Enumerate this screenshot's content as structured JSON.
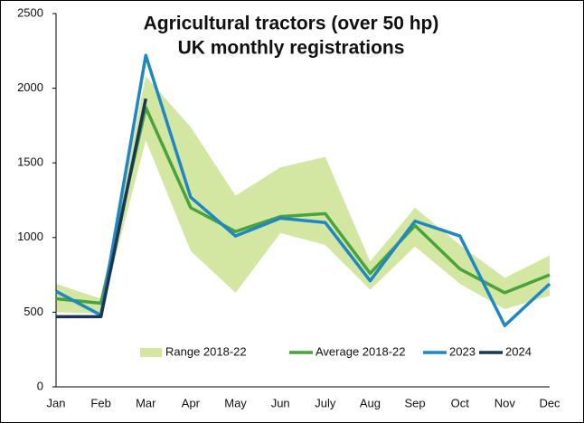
{
  "chart_data": {
    "type": "line",
    "title": [
      "Agricultural tractors (over 50 hp)",
      "UK monthly registrations"
    ],
    "categories": [
      "Jan",
      "Feb",
      "Mar",
      "Apr",
      "May",
      "Jun",
      "July",
      "Aug",
      "Sep",
      "Oct",
      "Nov",
      "Dec"
    ],
    "range": {
      "name": "Range 2018-22",
      "color": "#d3e7a3",
      "low": [
        500,
        490,
        1650,
        910,
        630,
        1030,
        950,
        650,
        940,
        690,
        520,
        610
      ],
      "high": [
        690,
        590,
        2080,
        1740,
        1280,
        1470,
        1540,
        840,
        1200,
        950,
        730,
        880
      ]
    },
    "series": [
      {
        "name": "Average 2018-22",
        "color": "#4aa33a",
        "values": [
          590,
          560,
          1870,
          1200,
          1040,
          1140,
          1160,
          760,
          1080,
          790,
          630,
          750
        ]
      },
      {
        "name": "2023",
        "color": "#1f87c4",
        "values": [
          640,
          480,
          2220,
          1270,
          1010,
          1130,
          1100,
          710,
          1110,
          1010,
          410,
          690
        ]
      },
      {
        "name": "2024",
        "color": "#1c3553",
        "values": [
          470,
          470,
          1930,
          null,
          null,
          null,
          null,
          null,
          null,
          null,
          null,
          null
        ]
      }
    ],
    "ylim": [
      0,
      2500
    ],
    "yticks": [
      0,
      500,
      1000,
      1500,
      2000,
      2500
    ],
    "legend": "bottom"
  }
}
